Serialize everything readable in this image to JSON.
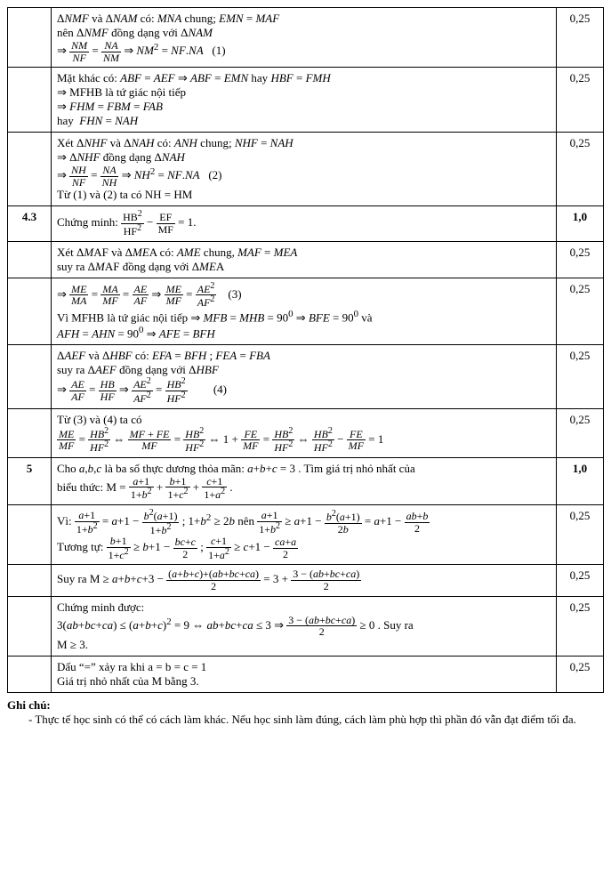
{
  "rows": [
    {
      "num": "",
      "content": "Δ<i>NMF</i>  và  Δ<i>NAM</i>  có:  <i>MNA</i> chung;  <i>EMN</i> = <i>MAF</i><br>nên  Δ<i>NMF</i>  đồng dạng với  Δ<i>NAM</i><br>⇒ <span class='frac'><span class='top'><i>NM</i></span><span class='bot'><i>NF</i></span></span> = <span class='frac'><span class='top'><i>NA</i></span><span class='bot'><i>NM</i></span></span> ⇒ <i>NM</i><sup>2</sup> = <i>NF</i>.<i>NA</i> &nbsp;&nbsp;(1)",
      "score": "0,25"
    },
    {
      "num": "",
      "content": "Mặt khác có:  <i>ABF</i> = <i>AEF</i> ⇒ <i>ABF</i> = <i>EMN</i>  hay  <i>HBF</i> = <i>FMH</i><br>⇒ MFHB là tứ giác nội tiếp<br>⇒ <i>FHM</i> = <i>FBM</i> = <i>FAB</i><br>hay &nbsp;<i>FHN</i> = <i>NAH</i>",
      "score": "0,25"
    },
    {
      "num": "",
      "content": "Xét  Δ<i>NHF</i>  và  Δ<i>NAH</i>  có:  <i>ANH</i> chung;  <i>NHF</i> = <i>NAH</i><br>⇒ Δ<i>NHF</i>  đồng dạng  Δ<i>NAH</i><br>⇒ <span class='frac'><span class='top'><i>NH</i></span><span class='bot'><i>NF</i></span></span> = <span class='frac'><span class='top'><i>NA</i></span><span class='bot'><i>NH</i></span></span> ⇒ <i>NH</i><sup>2</sup> = <i>NF</i>.<i>NA</i> &nbsp;&nbsp;(2)<br>Từ (1) và (2) ta có NH = HM",
      "score": "0,25"
    },
    {
      "num": "4.3",
      "content": "Chứng minh: <span class='frac'><span class='top'>HB<sup>2</sup></span><span class='bot'>HF<sup>2</sup></span></span> − <span class='frac'><span class='top'>EF</span><span class='bot'>MF</span></span> = 1.",
      "score": "1,0",
      "boldScore": true
    },
    {
      "num": "",
      "content": "Xét  Δ<i>M</i>AF  và  Δ<i>ME</i>A có:  <i>AME</i>  chung,  <i>MAF</i> = <i>MEA</i><br>suy ra  Δ<i>M</i>AF  đồng dạng với  Δ<i>ME</i>A",
      "score": "0,25"
    },
    {
      "num": "",
      "content": "⇒ <span class='frac'><span class='top'><i>ME</i></span><span class='bot'><i>MA</i></span></span> = <span class='frac'><span class='top'><i>MA</i></span><span class='bot'><i>MF</i></span></span> = <span class='frac'><span class='top'><i>AE</i></span><span class='bot'><i>AF</i></span></span> ⇒ <span class='frac'><span class='top'><i>ME</i></span><span class='bot'><i>MF</i></span></span> = <span class='frac'><span class='top'><i>AE</i><sup>2</sup></span><span class='bot'><i>AF</i><sup>2</sup></span></span> &nbsp;&nbsp;&nbsp;(3)<br>Vì  MFHB là tứ giác nội tiếp  ⇒ <i>MFB</i> = <i>MHB</i> = 90<sup>0</sup> ⇒ <i>BFE</i> = 90<sup>0</sup> và<br><i>AFH</i> = <i>AHN</i> = 90<sup>0</sup> ⇒ <i>AFE</i> = <i>BFH</i>",
      "score": "0,25"
    },
    {
      "num": "",
      "content": "Δ<i>AEF</i>  và  Δ<i>HBF</i>  có:  <i>EFA</i> = <i>BFH</i> ;  <i>FEA</i> = <i>FBA</i><br>suy ra  Δ<i>AEF</i>  đồng dạng với  Δ<i>HBF</i><br>⇒ <span class='frac'><span class='top'><i>AE</i></span><span class='bot'><i>AF</i></span></span> = <span class='frac'><span class='top'><i>HB</i></span><span class='bot'><i>HF</i></span></span> ⇒ <span class='frac'><span class='top'><i>AE</i><sup>2</sup></span><span class='bot'><i>AF</i><sup>2</sup></span></span> = <span class='frac'><span class='top'><i>HB</i><sup>2</sup></span><span class='bot'><i>HF</i><sup>2</sup></span></span> &nbsp;&nbsp;&nbsp;&nbsp;&nbsp;&nbsp;&nbsp;&nbsp;(4)",
      "score": "0,25"
    },
    {
      "num": "",
      "content": "Từ (3) và (4) ta có<br><span class='frac'><span class='top'><i>ME</i></span><span class='bot'><i>MF</i></span></span> = <span class='frac'><span class='top'><i>HB</i><sup>2</sup></span><span class='bot'><i>HF</i><sup>2</sup></span></span> ⇔ <span class='frac'><span class='top'><i>MF</i> + <i>FE</i></span><span class='bot'><i>MF</i></span></span> = <span class='frac'><span class='top'><i>HB</i><sup>2</sup></span><span class='bot'><i>HF</i><sup>2</sup></span></span> ⇔ 1 + <span class='frac'><span class='top'><i>FE</i></span><span class='bot'><i>MF</i></span></span> = <span class='frac'><span class='top'><i>HB</i><sup>2</sup></span><span class='bot'><i>HF</i><sup>2</sup></span></span> ⇔ <span class='frac'><span class='top'><i>HB</i><sup>2</sup></span><span class='bot'><i>HF</i><sup>2</sup></span></span> − <span class='frac'><span class='top'><i>FE</i></span><span class='bot'><i>MF</i></span></span> = 1",
      "score": "0,25"
    },
    {
      "num": "5",
      "content": "Cho  <i>a</i>,<i>b</i>,<i>c</i>   là ba số thực dương thỏa mãn:  <i>a</i>+<i>b</i>+<i>c</i> = 3 . Tìm giá trị nhỏ nhất của<br>biểu thức: M  =  <span class='frac'><span class='top'><i>a</i>+1</span><span class='bot'>1+<i>b</i><sup>2</sup></span></span> + <span class='frac'><span class='top'><i>b</i>+1</span><span class='bot'>1+<i>c</i><sup>2</sup></span></span> + <span class='frac'><span class='top'><i>c</i>+1</span><span class='bot'>1+<i>a</i><sup>2</sup></span></span> .",
      "score": "1,0",
      "boldScore": true
    },
    {
      "num": "",
      "content": "Vì: <span class='frac'><span class='top'><i>a</i>+1</span><span class='bot'>1+<i>b</i><sup>2</sup></span></span> = <i>a</i>+1 − <span class='frac'><span class='top'><i>b</i><sup>2</sup>(<i>a</i>+1)</span><span class='bot'>1+<i>b</i><sup>2</sup></span></span> ;  1+<i>b</i><sup>2</sup> ≥ 2<i>b</i>  nên  <span class='frac'><span class='top'><i>a</i>+1</span><span class='bot'>1+<i>b</i><sup>2</sup></span></span> ≥ <i>a</i>+1 − <span class='frac'><span class='top'><i>b</i><sup>2</sup>(<i>a</i>+1)</span><span class='bot'>2<i>b</i></span></span> = <i>a</i>+1 − <span class='frac'><span class='top'><i>ab</i>+<i>b</i></span><span class='bot'>2</span></span><br>Tương tự:  <span class='frac'><span class='top'><i>b</i>+1</span><span class='bot'>1+<i>c</i><sup>2</sup></span></span> ≥ <i>b</i>+1 − <span class='frac'><span class='top'><i>bc</i>+<i>c</i></span><span class='bot'>2</span></span> ;  <span class='frac'><span class='top'><i>c</i>+1</span><span class='bot'>1+<i>a</i><sup>2</sup></span></span> ≥ <i>c</i>+1 − <span class='frac'><span class='top'><i>ca</i>+<i>a</i></span><span class='bot'>2</span></span>",
      "score": "0,25"
    },
    {
      "num": "",
      "content": "Suy ra M  ≥ <i>a</i>+<i>b</i>+<i>c</i>+3 − <span class='frac'><span class='top'>(<i>a</i>+<i>b</i>+<i>c</i>)+(<i>ab</i>+<i>bc</i>+<i>ca</i>)</span><span class='bot'>2</span></span> = 3 + <span class='frac'><span class='top'>3 − (<i>ab</i>+<i>bc</i>+<i>ca</i>)</span><span class='bot'>2</span></span>",
      "score": "0,25"
    },
    {
      "num": "",
      "content": "Chứng minh được:<br>3(<i>ab</i>+<i>bc</i>+<i>ca</i>) ≤ (<i>a</i>+<i>b</i>+<i>c</i>)<sup>2</sup> = 9 ⇔ <i>ab</i>+<i>bc</i>+<i>ca</i> ≤ 3 ⇒ <span class='frac'><span class='top'>3 − (<i>ab</i>+<i>bc</i>+<i>ca</i>)</span><span class='bot'>2</span></span> ≥ 0 . Suy ra<br>M ≥ 3.",
      "score": "0,25"
    },
    {
      "num": "",
      "content": "Dấu “=” xảy ra khi a = b = c = 1<br>Giá trị nhỏ nhất của M bằng 3.",
      "score": "0,25"
    }
  ],
  "footnote": {
    "title": "Ghi chú:",
    "text": "- Thực tế học sinh có thể có cách làm khác. Nếu học sinh làm đúng, cách làm phù hợp thì phần đó vẫn đạt điểm tối đa."
  }
}
